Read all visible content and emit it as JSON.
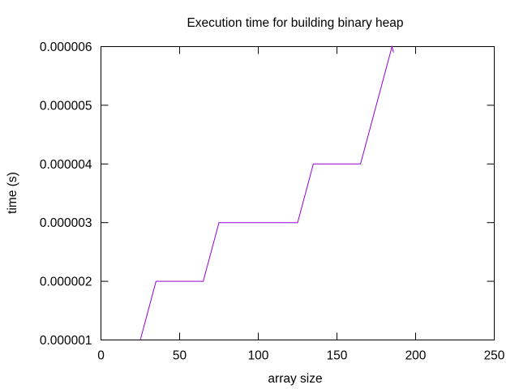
{
  "chart_data": {
    "type": "line",
    "title": "Execution time for building binary heap",
    "xlabel": "array size",
    "ylabel": "time (s)",
    "xlim": [
      0,
      250
    ],
    "ylim": [
      1e-06,
      6e-06
    ],
    "xticks": [
      0,
      50,
      100,
      150,
      200,
      250
    ],
    "xtick_labels": [
      "0",
      "50",
      "100",
      "150",
      "200",
      "250"
    ],
    "yticks": [
      1e-06,
      2e-06,
      3e-06,
      4e-06,
      5e-06,
      6e-06
    ],
    "ytick_labels": [
      "0.000001",
      "0.000002",
      "0.000003",
      "0.000004",
      "0.000005",
      "0.000006"
    ],
    "grid": false,
    "legend": "none",
    "series": [
      {
        "color": "#9400d3",
        "x": [
          25,
          35,
          65,
          75,
          125,
          135,
          165,
          185,
          186
        ],
        "y": [
          1e-06,
          2e-06,
          2e-06,
          3e-06,
          3e-06,
          4e-06,
          4e-06,
          6e-06,
          5.9e-06
        ]
      }
    ]
  }
}
